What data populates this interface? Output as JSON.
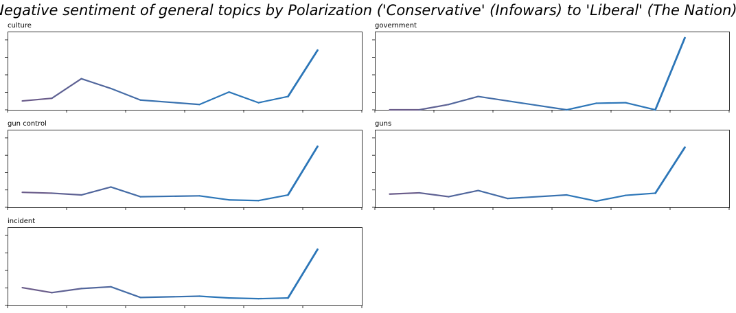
{
  "figure": {
    "title": "Negative sentiment of general topics by Polarization ('Conservative' (Infowars) to 'Liberal' (The Nation))"
  },
  "chart_data": [
    {
      "type": "line",
      "title": "culture",
      "xlim": [
        -0.5,
        11.5
      ],
      "ylim": [
        0,
        4.4
      ],
      "x": [
        0,
        1,
        2,
        3,
        4,
        6,
        7,
        8,
        9,
        10
      ],
      "y": [
        0.5,
        0.65,
        1.75,
        1.2,
        0.55,
        0.3,
        1.0,
        0.4,
        0.75,
        3.35
      ]
    },
    {
      "type": "line",
      "title": "government",
      "xlim": [
        -0.5,
        11.5
      ],
      "ylim": [
        0,
        4.4
      ],
      "x": [
        0,
        1,
        2,
        3,
        4,
        6,
        7,
        8,
        9,
        10
      ],
      "y": [
        0.0,
        0.0,
        0.3,
        0.75,
        0.5,
        0.0,
        0.37,
        0.4,
        0.0,
        4.05
      ]
    },
    {
      "type": "line",
      "title": "gun control",
      "xlim": [
        -0.5,
        11.5
      ],
      "ylim": [
        0,
        4.4
      ],
      "x": [
        0,
        1,
        2,
        3,
        4,
        6,
        7,
        8,
        9,
        10
      ],
      "y": [
        0.85,
        0.8,
        0.7,
        1.15,
        0.6,
        0.65,
        0.42,
        0.38,
        0.7,
        3.45
      ]
    },
    {
      "type": "line",
      "title": "guns",
      "xlim": [
        -0.5,
        11.5
      ],
      "ylim": [
        0,
        4.4
      ],
      "x": [
        0,
        1,
        2,
        3,
        4,
        6,
        7,
        8,
        9,
        10
      ],
      "y": [
        0.75,
        0.82,
        0.6,
        0.95,
        0.5,
        0.7,
        0.35,
        0.68,
        0.8,
        3.4
      ]
    },
    {
      "type": "line",
      "title": "incident",
      "xlim": [
        -0.5,
        11.5
      ],
      "ylim": [
        0,
        4.4
      ],
      "x": [
        0,
        1,
        2,
        3,
        4,
        6,
        7,
        8,
        9,
        10
      ],
      "y": [
        1.0,
        0.72,
        0.95,
        1.05,
        0.45,
        0.52,
        0.42,
        0.38,
        0.42,
        3.15
      ]
    }
  ]
}
